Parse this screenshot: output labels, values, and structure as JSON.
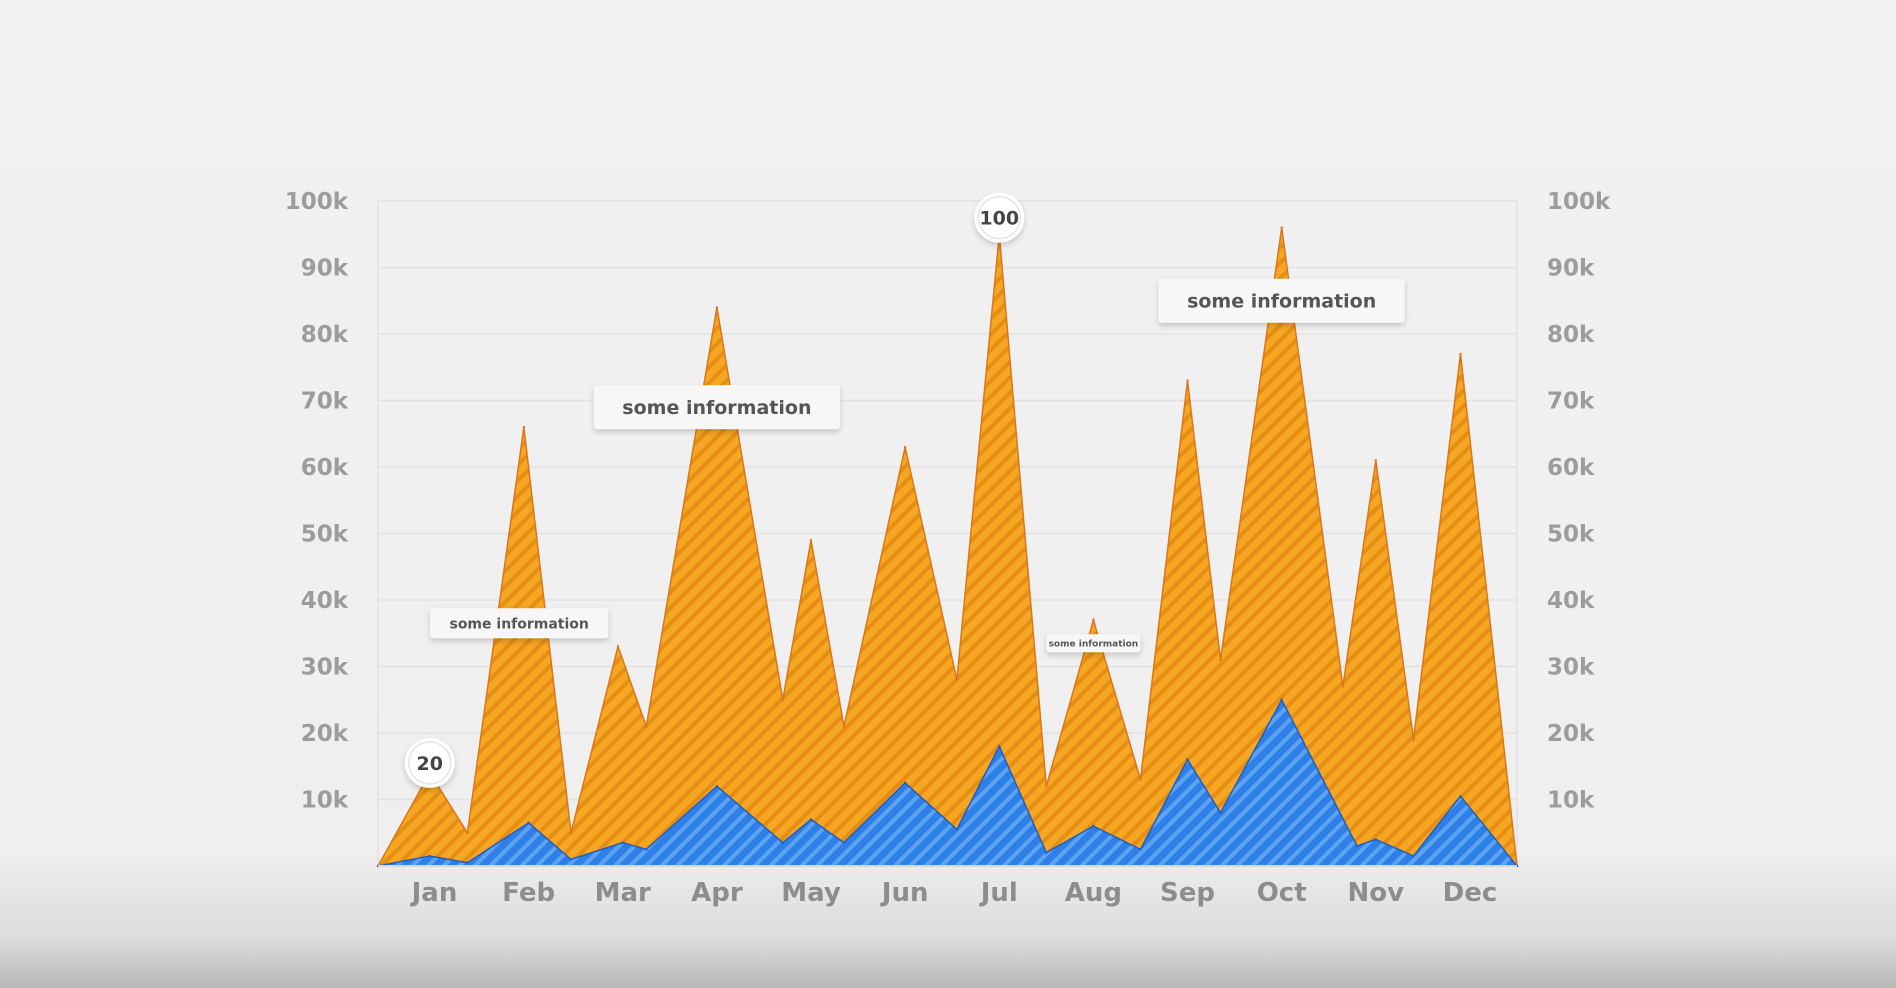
{
  "chart_data": {
    "type": "area",
    "title": "",
    "xlabel": "",
    "ylabel": "",
    "ylim": [
      0,
      100000
    ],
    "y_ticks": [
      "10k",
      "20k",
      "30k",
      "40k",
      "50k",
      "60k",
      "70k",
      "80k",
      "90k",
      "100k"
    ],
    "y_tick_values": [
      10000,
      20000,
      30000,
      40000,
      50000,
      60000,
      70000,
      80000,
      90000,
      100000
    ],
    "categories": [
      "Jan",
      "Feb",
      "Mar",
      "Apr",
      "May",
      "Jun",
      "Jul",
      "Aug",
      "Sep",
      "Oct",
      "Nov",
      "Dec"
    ],
    "x_domain": [
      0.4,
      12.5
    ],
    "grid": true,
    "dual_y_axis": true,
    "series": [
      {
        "color": "#f5a623",
        "pattern": "diagonal-stripes",
        "points": [
          [
            0.4,
            0
          ],
          [
            0.95,
            14000
          ],
          [
            1.35,
            5000
          ],
          [
            1.95,
            66000
          ],
          [
            2.45,
            5000
          ],
          [
            2.95,
            33000
          ],
          [
            3.25,
            21000
          ],
          [
            4.0,
            84000
          ],
          [
            4.7,
            25000
          ],
          [
            5.0,
            49000
          ],
          [
            5.35,
            21000
          ],
          [
            6.0,
            63000
          ],
          [
            6.55,
            28000
          ],
          [
            7.0,
            95000
          ],
          [
            7.5,
            12000
          ],
          [
            8.0,
            37000
          ],
          [
            8.5,
            13000
          ],
          [
            9.0,
            73000
          ],
          [
            9.35,
            31000
          ],
          [
            10.0,
            96000
          ],
          [
            10.65,
            27000
          ],
          [
            11.0,
            61000
          ],
          [
            11.4,
            19000
          ],
          [
            11.9,
            77000
          ],
          [
            12.5,
            0
          ]
        ]
      },
      {
        "color": "#2e7fe8",
        "pattern": "diagonal-stripes",
        "points": [
          [
            0.4,
            0
          ],
          [
            0.95,
            1500
          ],
          [
            1.35,
            500
          ],
          [
            2.0,
            6500
          ],
          [
            2.45,
            1000
          ],
          [
            3.0,
            3500
          ],
          [
            3.25,
            2500
          ],
          [
            4.0,
            12000
          ],
          [
            4.7,
            3500
          ],
          [
            5.0,
            7000
          ],
          [
            5.35,
            3500
          ],
          [
            6.0,
            12500
          ],
          [
            6.55,
            5500
          ],
          [
            7.0,
            18000
          ],
          [
            7.5,
            2000
          ],
          [
            8.0,
            6000
          ],
          [
            8.5,
            2500
          ],
          [
            9.0,
            16000
          ],
          [
            9.35,
            8000
          ],
          [
            10.0,
            25000
          ],
          [
            10.8,
            3000
          ],
          [
            11.0,
            4000
          ],
          [
            11.4,
            1500
          ],
          [
            11.9,
            10500
          ],
          [
            12.5,
            0
          ]
        ]
      }
    ],
    "annotations": [
      {
        "text": "some information",
        "x": 1.9,
        "y": 36500,
        "size": "small"
      },
      {
        "text": "some information",
        "x": 4.0,
        "y": 69000,
        "size": "medium"
      },
      {
        "text": "some information",
        "x": 8.0,
        "y": 33500,
        "size": "tiny"
      },
      {
        "text": "some information",
        "x": 10.0,
        "y": 85000,
        "size": "medium"
      }
    ],
    "badges": [
      {
        "text": "20",
        "x": 0.95,
        "y": 15500
      },
      {
        "text": "100",
        "x": 7.0,
        "y": 97500
      }
    ]
  }
}
